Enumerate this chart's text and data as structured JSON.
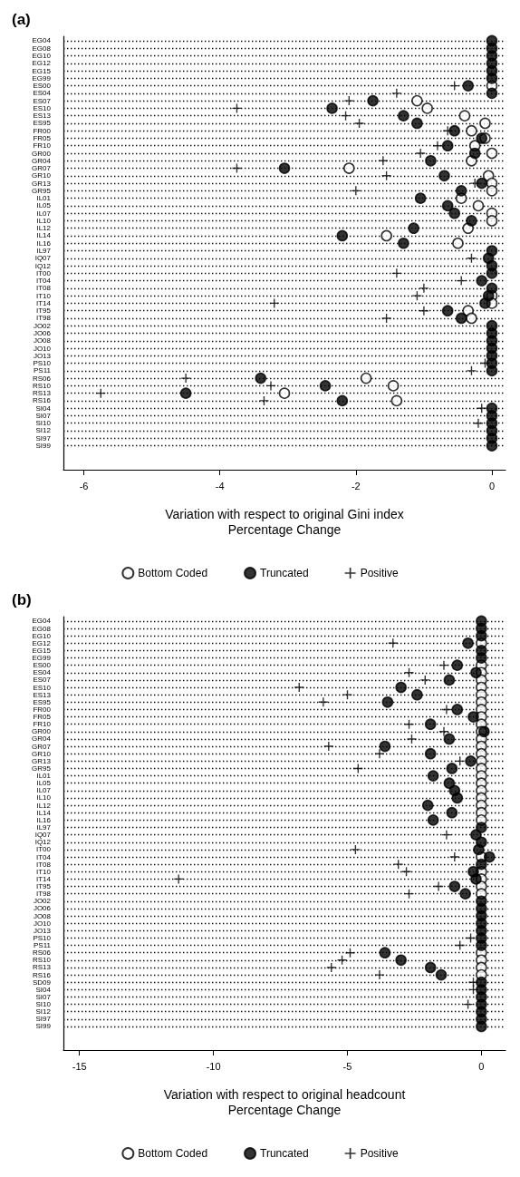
{
  "chart_data": [
    {
      "type": "scatter",
      "orientation": "horizontal",
      "title": "(a)",
      "xlabel": "Variation with respect to original Gini index\nPercentage Change",
      "xlim": [
        -6.3,
        0.2
      ],
      "xticks": [
        -6,
        -4,
        -2,
        0
      ],
      "grid": "y",
      "legend": "bottom",
      "categories": [
        "EG04",
        "EG08",
        "EG10",
        "EG12",
        "EG15",
        "EG99",
        "ES00",
        "ES04",
        "ES07",
        "ES10",
        "ES13",
        "ES95",
        "FR00",
        "FR05",
        "FR10",
        "GR00",
        "GR04",
        "GR07",
        "GR10",
        "GR13",
        "GR95",
        "IL01",
        "IL05",
        "IL07",
        "IL10",
        "IL12",
        "IL14",
        "IL16",
        "IL97",
        "IQ07",
        "IQ12",
        "IT00",
        "IT04",
        "IT08",
        "IT10",
        "IT14",
        "IT95",
        "IT98",
        "JO02",
        "JO06",
        "JO08",
        "JO10",
        "JO13",
        "PS10",
        "PS11",
        "RS06",
        "RS10",
        "RS13",
        "RS16",
        "SI04",
        "SI07",
        "SI10",
        "SI12",
        "SI97",
        "SI99"
      ],
      "series": [
        {
          "name": "Bottom Coded",
          "color": "#ffffff",
          "marker": "circle",
          "values": [
            null,
            null,
            null,
            null,
            null,
            null,
            0,
            null,
            -1.1,
            -0.95,
            -0.4,
            -0.1,
            -0.3,
            -0.1,
            -0.25,
            0,
            -0.3,
            -2.1,
            -0.05,
            0,
            0,
            -0.45,
            -0.2,
            0,
            0,
            -0.35,
            -1.55,
            -0.5,
            null,
            null,
            null,
            null,
            null,
            null,
            0,
            0,
            -0.35,
            -0.3,
            null,
            null,
            null,
            null,
            null,
            null,
            null,
            -1.85,
            -1.45,
            -3.05,
            -1.4,
            null,
            null,
            null,
            null,
            null,
            null
          ]
        },
        {
          "name": "Truncated",
          "color": "#000000",
          "marker": "circle",
          "values": [
            0,
            0,
            0,
            0,
            0,
            0,
            -0.35,
            0,
            -1.75,
            -2.35,
            -1.3,
            -1.1,
            -0.55,
            -0.15,
            -0.65,
            -0.25,
            -0.9,
            -3.05,
            -0.7,
            -0.15,
            -0.45,
            -1.05,
            -0.65,
            -0.55,
            -0.3,
            -1.15,
            -2.2,
            -1.3,
            0,
            -0.05,
            0,
            0,
            -0.15,
            0,
            -0.05,
            -0.1,
            -0.65,
            -0.45,
            0,
            0,
            0,
            0,
            0,
            0,
            0,
            -3.4,
            -2.45,
            -4.5,
            -2.2,
            0,
            0,
            0,
            0,
            0,
            0
          ]
        },
        {
          "name": "Positive",
          "color": "#000000",
          "marker": "cross",
          "values": [
            null,
            null,
            null,
            null,
            null,
            null,
            -0.55,
            -1.4,
            -2.1,
            -3.75,
            -2.15,
            -1.95,
            -0.65,
            null,
            -0.8,
            -1.05,
            -1.6,
            -3.75,
            -1.55,
            -0.25,
            -2,
            null,
            null,
            null,
            null,
            null,
            null,
            null,
            null,
            -0.3,
            null,
            -1.4,
            -0.45,
            -1,
            -1.1,
            -3.2,
            -1,
            -1.55,
            null,
            null,
            null,
            null,
            null,
            -0.1,
            -0.3,
            -4.5,
            -3.25,
            -5.75,
            -3.35,
            -0.15,
            null,
            -0.2,
            null,
            null,
            null
          ]
        }
      ]
    },
    {
      "type": "scatter",
      "orientation": "horizontal",
      "title": "(b)",
      "xlabel": "Variation with respect to original headcount\nPercentage Change",
      "xlim": [
        -15.6,
        0.9
      ],
      "xticks": [
        -15,
        -10,
        -5,
        0
      ],
      "grid": "y",
      "legend": "bottom",
      "categories": [
        "EG04",
        "EG08",
        "EG10",
        "EG12",
        "EG15",
        "EG99",
        "ES00",
        "ES04",
        "ES07",
        "ES10",
        "ES13",
        "ES95",
        "FR00",
        "FR05",
        "FR10",
        "GR00",
        "GR04",
        "GR07",
        "GR10",
        "GR13",
        "GR95",
        "IL01",
        "IL05",
        "IL07",
        "IL10",
        "IL12",
        "IL14",
        "IL16",
        "IL97",
        "IQ07",
        "IQ12",
        "IT00",
        "IT04",
        "IT08",
        "IT10",
        "IT14",
        "IT95",
        "IT98",
        "JO02",
        "JO06",
        "JO08",
        "JO10",
        "JO13",
        "PS10",
        "PS11",
        "RS06",
        "RS10",
        "RS13",
        "RS16",
        "SD09",
        "SI04",
        "SI07",
        "SI10",
        "SI12",
        "SI97",
        "SI99"
      ],
      "series": [
        {
          "name": "Bottom Coded",
          "color": "#ffffff",
          "marker": "circle",
          "values": [
            null,
            null,
            null,
            0,
            null,
            null,
            0,
            0,
            0,
            0,
            0,
            0,
            0,
            0,
            0,
            0,
            0,
            0,
            0,
            0,
            0,
            0,
            0,
            0,
            0,
            0,
            0,
            0,
            null,
            null,
            null,
            null,
            0,
            null,
            0,
            0,
            0,
            0,
            null,
            null,
            null,
            null,
            null,
            null,
            null,
            0,
            0,
            0,
            0,
            null,
            null,
            null,
            null,
            null,
            null,
            null
          ]
        },
        {
          "name": "Truncated",
          "color": "#000000",
          "marker": "circle",
          "values": [
            0,
            0,
            0,
            -0.5,
            0,
            0,
            -0.9,
            -0.2,
            -1.2,
            -3,
            -2.4,
            -3.5,
            -0.9,
            -0.3,
            -1.9,
            0.1,
            -1.2,
            -3.6,
            -1.9,
            -0.4,
            -1.1,
            -1.8,
            -1.2,
            -1,
            -0.9,
            -2,
            -1.1,
            -1.8,
            0,
            -0.2,
            0,
            -0.1,
            0.3,
            0,
            -0.3,
            -0.2,
            -1,
            -0.6,
            0,
            0,
            0,
            0,
            0,
            0,
            0,
            -3.6,
            -3,
            -1.9,
            -1.5,
            0,
            0,
            0,
            0,
            0,
            0,
            0
          ]
        },
        {
          "name": "Positive",
          "color": "#000000",
          "marker": "cross",
          "values": [
            null,
            null,
            null,
            -3.3,
            null,
            null,
            -1.4,
            -2.7,
            -2.1,
            -6.8,
            -5,
            -5.9,
            -1.3,
            null,
            -2.7,
            -1.4,
            -2.6,
            -5.7,
            -3.8,
            -0.8,
            -4.6,
            null,
            null,
            null,
            null,
            null,
            null,
            null,
            null,
            -1.3,
            null,
            -4.7,
            -1,
            -3.1,
            -2.8,
            -11.3,
            -1.6,
            -2.7,
            null,
            null,
            null,
            null,
            null,
            -0.4,
            -0.8,
            -4.9,
            -5.2,
            -5.6,
            -3.8,
            -0.3,
            -0.3,
            null,
            -0.5,
            null,
            null,
            null
          ]
        }
      ]
    }
  ]
}
